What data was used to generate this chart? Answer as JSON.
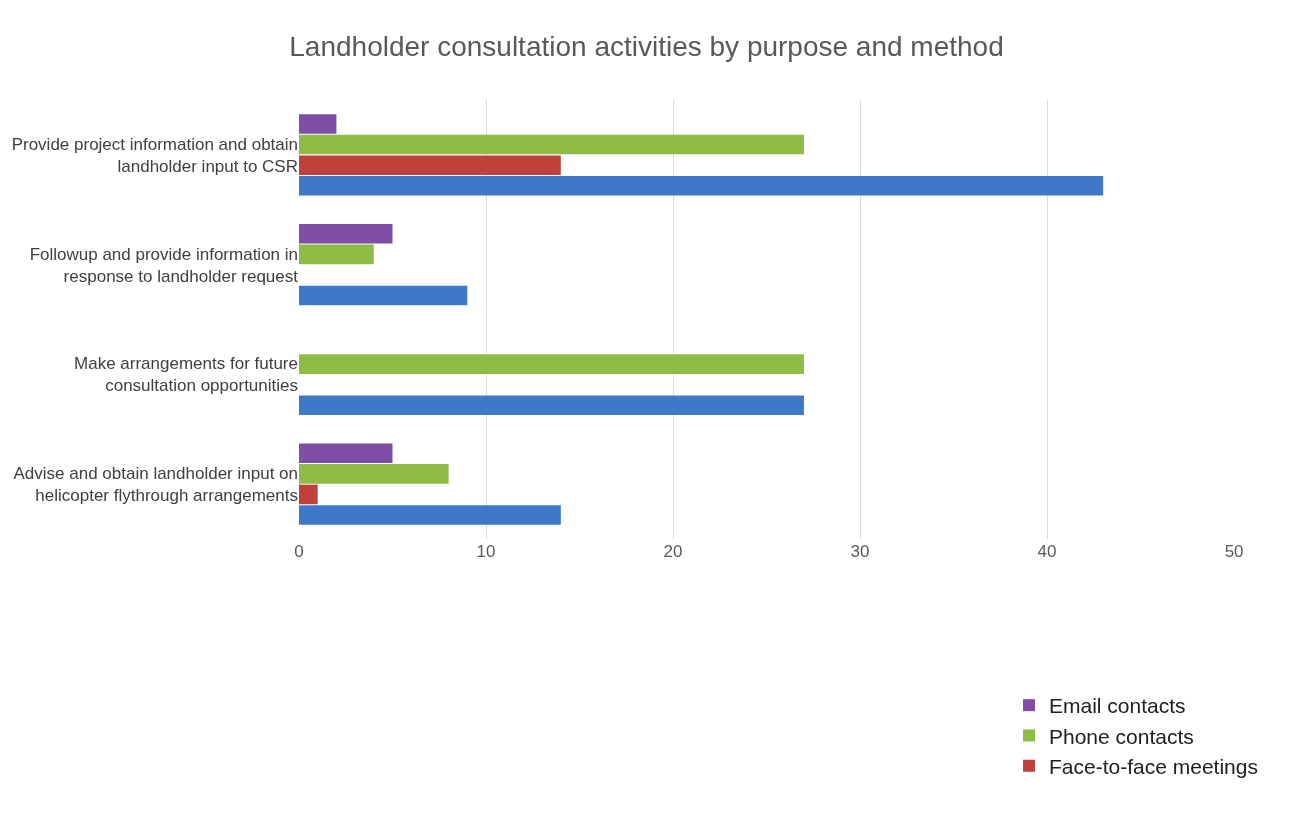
{
  "chart_data": {
    "type": "bar",
    "orientation": "horizontal",
    "title": "Landholder consultation activities by purpose and method",
    "categories": [
      "Provide project information and obtain landholder input to CSR",
      "Followup and provide information in response to landholder request",
      "Make arrangements for future consultation opportunities",
      "Advise and obtain landholder input on helicopter flythrough arrangements"
    ],
    "series": [
      {
        "name": "Email contacts",
        "color": "#7f4fa8",
        "values": [
          2,
          5,
          0,
          5
        ]
      },
      {
        "name": "Phone contacts",
        "color": "#8fbc45",
        "values": [
          27,
          4,
          27,
          8
        ]
      },
      {
        "name": "Face-to-face meetings",
        "color": "#c0413c",
        "values": [
          14,
          0,
          0,
          1
        ]
      },
      {
        "color": "#3d78c9",
        "values": [
          43,
          9,
          27,
          14
        ]
      }
    ],
    "xlim": [
      0,
      50
    ],
    "xticks": [
      0,
      10,
      20,
      30,
      40,
      50
    ],
    "grid": "x",
    "legend": "bottom right"
  }
}
